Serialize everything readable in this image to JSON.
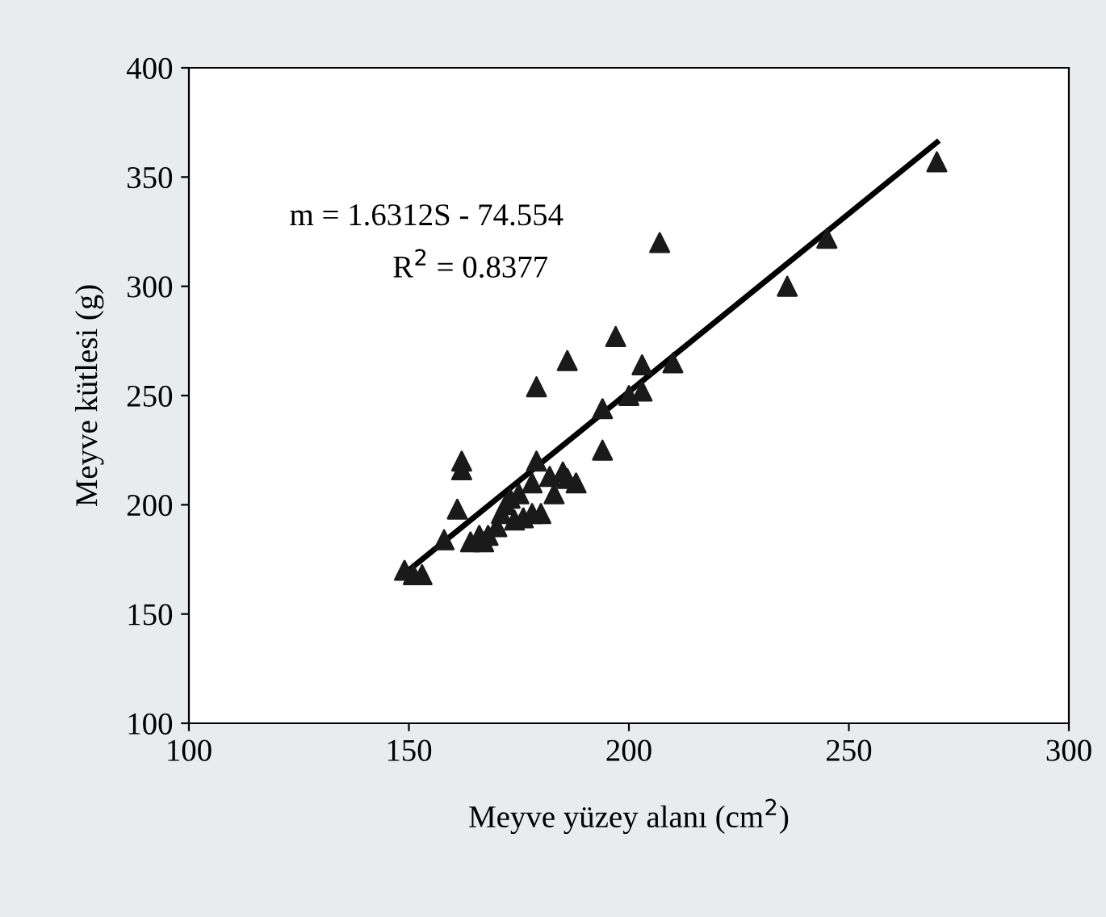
{
  "chart_data": {
    "type": "scatter",
    "xlabel": "Meyve yüzey alanı (cm$^{2}$)",
    "ylabel": "Meyve kütlesi (g)",
    "xlim": [
      100,
      300
    ],
    "ylim": [
      100,
      400
    ],
    "xticks": [
      100,
      150,
      200,
      250,
      300
    ],
    "yticks": [
      100,
      150,
      200,
      250,
      300,
      350,
      400
    ],
    "grid": false,
    "legend": false,
    "marker": "triangle",
    "annotations": [
      "m = 1.6312S - 74.554",
      "R$^{2}$ = 0.8377"
    ],
    "series": [
      {
        "color": "#1a1a1a",
        "x": [
          149,
          151,
          153,
          158,
          161,
          162,
          162,
          164,
          166,
          167,
          168,
          170,
          171,
          172,
          173,
          174,
          175,
          176,
          178,
          178,
          179,
          180,
          182,
          183,
          185,
          186,
          188,
          179,
          186,
          194,
          194,
          197,
          200,
          203,
          203,
          207,
          210,
          236,
          245,
          270
        ],
        "values": [
          170,
          168,
          168,
          184,
          198,
          220,
          216,
          183,
          186,
          183,
          186,
          190,
          196,
          200,
          203,
          193,
          205,
          194,
          196,
          210,
          220,
          196,
          213,
          205,
          215,
          212,
          210,
          254,
          266,
          244,
          225,
          277,
          250,
          252,
          264,
          320,
          265,
          300,
          322,
          357
        ]
      },
      {
        "type": "line",
        "color": "#000000",
        "x": [
          150,
          270
        ],
        "values": [
          170.1,
          365.9
        ],
        "line_style": "solid",
        "marker": "none"
      }
    ]
  }
}
